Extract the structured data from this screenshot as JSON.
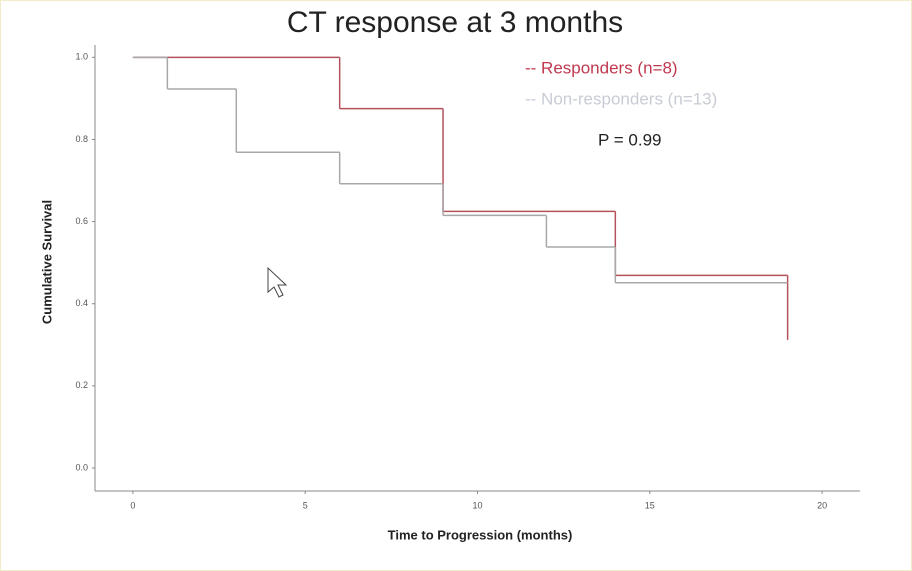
{
  "chart_data": {
    "type": "step",
    "title": "CT response at 3 months",
    "xlabel": "Time to Progression (months)",
    "ylabel": "Cumulative Survival",
    "annotation": "P = 0.99",
    "legend_labels": [
      "-- Responders (n=8)",
      "-- Non-responders (n=13)"
    ],
    "series": [
      {
        "name": "Responders",
        "color": "#b5505d",
        "x": [
          0,
          6,
          9,
          14,
          19
        ],
        "values": [
          1.0,
          0.875,
          0.625,
          0.469,
          0.312
        ]
      },
      {
        "name": "Non-responders",
        "color": "#a8a8a8",
        "x": [
          0,
          1,
          3,
          6,
          9,
          12,
          14,
          19
        ],
        "values": [
          1.0,
          0.923,
          0.769,
          0.692,
          0.615,
          0.538,
          0.451,
          0.451
        ]
      }
    ],
    "legend_colors": [
      "#c0394f",
      "#c8ccd4"
    ],
    "xlim": [
      -1.1,
      21.1
    ],
    "ylim": [
      -0.056,
      1.03
    ],
    "xticks": [
      0,
      5,
      10,
      15,
      20
    ],
    "yticks": [
      {
        "value": 0,
        "label": "0.0"
      },
      0.2,
      0.4,
      0.6,
      0.8,
      {
        "value": 1,
        "label": "1.0"
      }
    ]
  }
}
